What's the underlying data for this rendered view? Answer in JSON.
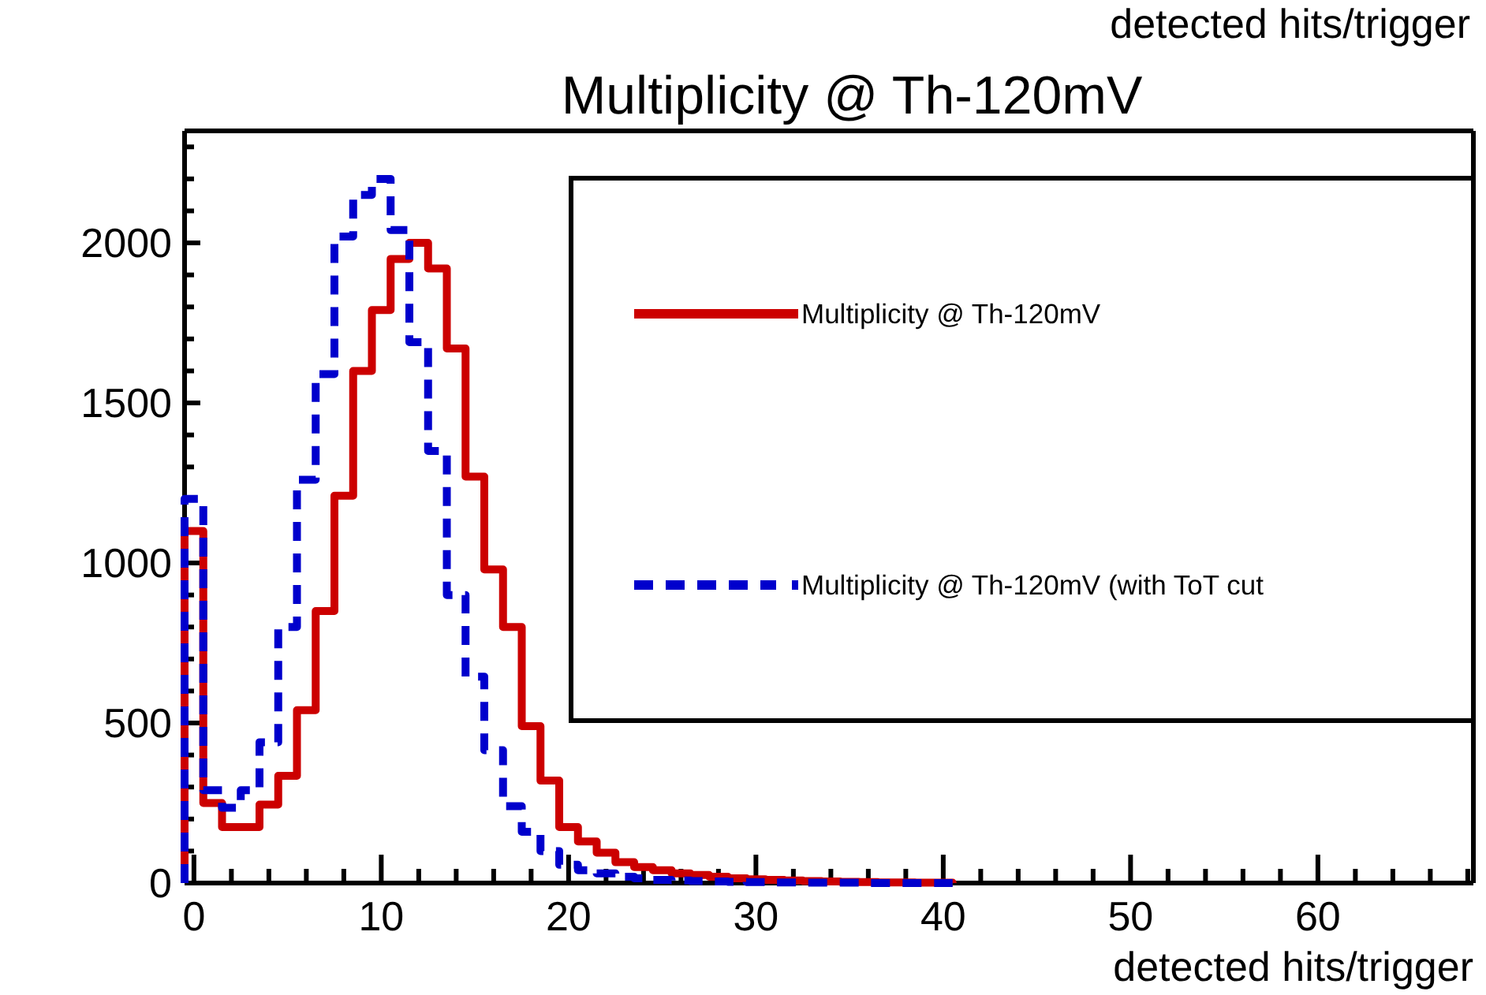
{
  "chart_data": {
    "type": "histogram",
    "title": "Multiplicity @ Th-120mV",
    "xlabel": "detected hits/trigger",
    "annotations": [
      "detected hits/trigger"
    ],
    "bins": [
      -0.5,
      0.5,
      1.5,
      2.5,
      3.5,
      4.5,
      5.5,
      6.5,
      7.5,
      8.5,
      9.5,
      10.5,
      11.5,
      12.5,
      13.5,
      14.5,
      15.5,
      16.5,
      17.5,
      18.5,
      19.5,
      20.5,
      21.5,
      22.5,
      23.5,
      24.5,
      25.5,
      26.5,
      27.5,
      28.5,
      29.5,
      30.5,
      31.5,
      32.5,
      33.5,
      34.5,
      35.5,
      36.5,
      37.5,
      38.5,
      39.5,
      40.5
    ],
    "series": [
      {
        "name": "Multiplicity @ Th-120mV",
        "color": "#cc0000",
        "line_style": "solid",
        "values": [
          1100,
          250,
          175,
          175,
          245,
          335,
          540,
          850,
          1210,
          1600,
          1790,
          1950,
          2000,
          1920,
          1670,
          1270,
          980,
          800,
          490,
          320,
          175,
          130,
          95,
          65,
          50,
          40,
          30,
          25,
          20,
          15,
          12,
          10,
          8,
          6,
          5,
          4,
          3,
          2,
          2,
          1,
          1
        ]
      },
      {
        "name": "Multiplicity @ Th-120mV (with ToT cut",
        "color": "#0000cc",
        "line_style": "dashed",
        "values": [
          1200,
          290,
          235,
          290,
          440,
          800,
          1260,
          1590,
          2020,
          2150,
          2200,
          2040,
          1690,
          1350,
          900,
          645,
          415,
          240,
          160,
          100,
          57,
          40,
          30,
          20,
          15,
          10,
          8,
          6,
          5,
          4,
          3,
          2,
          2,
          1,
          1,
          1,
          0,
          0,
          0,
          0,
          0
        ]
      }
    ],
    "xlim": [
      -0.5,
      68.3
    ],
    "ylim": [
      0,
      2350
    ],
    "xticks": [
      0,
      {
        "value": 2,
        "label": null
      },
      {
        "value": 4,
        "label": null
      },
      {
        "value": 6,
        "label": null
      },
      {
        "value": 8,
        "label": null
      },
      10,
      {
        "value": 12,
        "label": null
      },
      {
        "value": 14,
        "label": null
      },
      {
        "value": 16,
        "label": null
      },
      {
        "value": 18,
        "label": null
      },
      20,
      {
        "value": 22,
        "label": null
      },
      {
        "value": 24,
        "label": null
      },
      {
        "value": 26,
        "label": null
      },
      {
        "value": 28,
        "label": null
      },
      30,
      {
        "value": 32,
        "label": null
      },
      {
        "value": 34,
        "label": null
      },
      {
        "value": 36,
        "label": null
      },
      {
        "value": 38,
        "label": null
      },
      40,
      {
        "value": 42,
        "label": null
      },
      {
        "value": 44,
        "label": null
      },
      {
        "value": 46,
        "label": null
      },
      {
        "value": 48,
        "label": null
      },
      50,
      {
        "value": 52,
        "label": null
      },
      {
        "value": 54,
        "label": null
      },
      {
        "value": 56,
        "label": null
      },
      {
        "value": 58,
        "label": null
      },
      60,
      {
        "value": 62,
        "label": null
      },
      {
        "value": 64,
        "label": null
      },
      {
        "value": 66,
        "label": null
      },
      {
        "value": 68,
        "label": null
      }
    ],
    "yticks": [
      0,
      {
        "value": 100,
        "label": null
      },
      {
        "value": 200,
        "label": null
      },
      {
        "value": 300,
        "label": null
      },
      {
        "value": 400,
        "label": null
      },
      500,
      {
        "value": 600,
        "label": null
      },
      {
        "value": 700,
        "label": null
      },
      {
        "value": 800,
        "label": null
      },
      {
        "value": 900,
        "label": null
      },
      1000,
      {
        "value": 1100,
        "label": null
      },
      {
        "value": 1200,
        "label": null
      },
      {
        "value": 1300,
        "label": null
      },
      {
        "value": 1400,
        "label": null
      },
      1500,
      {
        "value": 1600,
        "label": null
      },
      {
        "value": 1700,
        "label": null
      },
      {
        "value": 1800,
        "label": null
      },
      {
        "value": 1900,
        "label": null
      },
      2000,
      {
        "value": 2100,
        "label": null
      },
      {
        "value": 2200,
        "label": null
      },
      {
        "value": 2300,
        "label": null
      }
    ],
    "legend": "top right"
  }
}
